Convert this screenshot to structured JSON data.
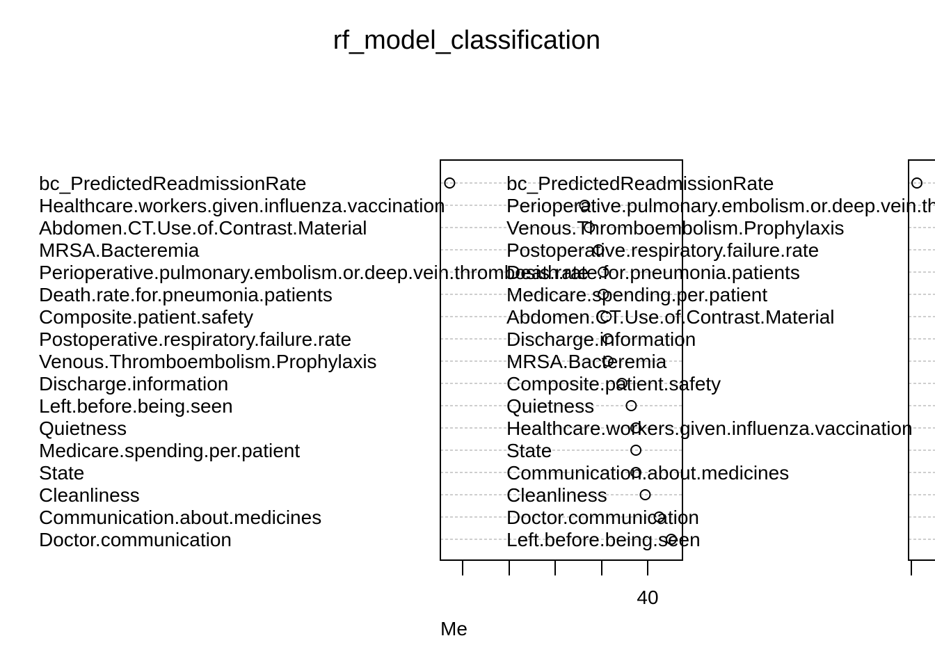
{
  "chart_data": {
    "type": "scatter",
    "title": "rf_model_classification",
    "xlabel_visible_fragment": "Me",
    "panels": [
      {
        "labels": [
          "bc_PredictedReadmissionRate",
          "Healthcare.workers.given.influenza.vaccination",
          "Abdomen.CT.Use.of.Contrast.Material",
          "MRSA.Bacteremia",
          "Perioperative.pulmonary.embolism.or.deep.vein.thrombosis.rate",
          "Death.rate.for.pneumonia.patients",
          "Composite.patient.safety",
          "Postoperative.respiratory.failure.rate",
          "Venous.Thromboembolism.Prophylaxis",
          "Discharge.information",
          "Left.before.being.seen",
          "Quietness",
          "Medicare.spending.per.patient",
          "State",
          "Cleanliness",
          "Communication.about.medicines",
          "Doctor.communication"
        ],
        "x_ticks": [
          "",
          "",
          "",
          "",
          "40"
        ],
        "x_tick_values": [
          20,
          25,
          30,
          35,
          40
        ],
        "xlim": [
          18,
          44
        ],
        "values": [
          null,
          null,
          null,
          null,
          null,
          null,
          null,
          null,
          null,
          null,
          null,
          null,
          null,
          null,
          null,
          null,
          null
        ]
      },
      {
        "labels": [
          "bc_PredictedReadmissionRate",
          "Perioperative.pulmonary.embolism.or.deep.vein.thrombosis.rate",
          "Venous.Thromboembolism.Prophylaxis",
          "Postoperative.respiratory.failure.rate",
          "Death.rate.for.pneumonia.patients",
          "Medicare.spending.per.patient",
          "Abdomen.CT.Use.of.Contrast.Material",
          "Discharge.information",
          "MRSA.Bacteremia",
          "Composite.patient.safety",
          "Quietness",
          "Healthcare.workers.given.influenza.vaccination",
          "State",
          "Communication.about.medicines",
          "Cleanliness",
          "Doctor.communication",
          "Left.before.being.seen"
        ],
        "x_ticks": [
          ""
        ],
        "values": [
          null,
          null,
          null,
          null,
          null,
          null,
          null,
          null,
          null,
          null,
          null,
          null,
          null,
          null,
          null,
          null,
          null
        ]
      }
    ],
    "panel1_points": [
      19,
      33.5,
      34,
      35,
      35.5,
      35.5,
      35.8,
      36,
      36,
      37.5,
      38.5,
      39,
      39,
      39,
      40,
      41.5,
      42.8
    ],
    "panel2_first_point": 1
  }
}
